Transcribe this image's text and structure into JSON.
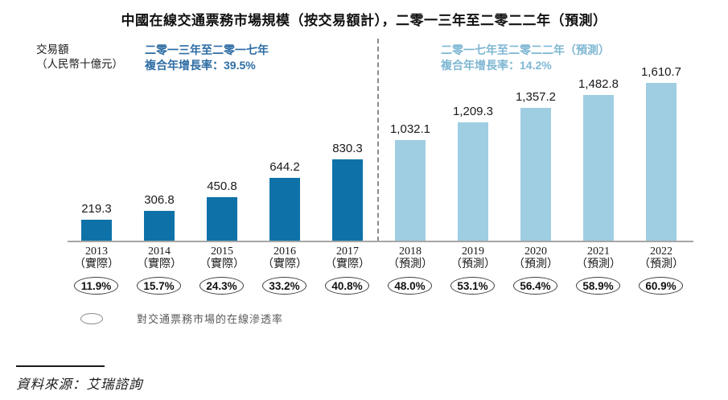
{
  "title": "中國在線交通票務市場規模（按交易額計），二零一三年至二零二二年（預測）",
  "y_axis": {
    "line1": "交易額",
    "line2": "（人民幣十億元）"
  },
  "annotations": {
    "actual": {
      "line1": "二零一三年至二零一七年",
      "line2": "複合年增長率：39.5%",
      "color": "#2E6DA4"
    },
    "forecast": {
      "line1": "二零一七年至二零二二年（預測）",
      "line2": "複合年增長率：14.2%",
      "color": "#7FB7D3"
    }
  },
  "chart_data": {
    "type": "bar",
    "title": "中國在線交通票務市場規模（按交易額計），二零一三年至二零二二年（預測）",
    "ylabel": "交易額（人民幣十億元）",
    "categories": [
      "2013",
      "2014",
      "2015",
      "2016",
      "2017",
      "2018",
      "2019",
      "2020",
      "2021",
      "2022"
    ],
    "category_sublabels": [
      "（實際）",
      "（實際）",
      "（實際）",
      "（實際）",
      "（實際）",
      "（預測）",
      "（預測）",
      "（預測）",
      "（預測）",
      "（預測）"
    ],
    "series": [
      {
        "name": "交易額（人民幣十億元）",
        "values": [
          219.3,
          306.8,
          450.8,
          644.2,
          830.3,
          1032.1,
          1209.3,
          1357.2,
          1482.8,
          1610.7
        ]
      }
    ],
    "value_labels": [
      "219.3",
      "306.8",
      "450.8",
      "644.2",
      "830.3",
      "1,032.1",
      "1,209.3",
      "1,357.2",
      "1,482.8",
      "1,610.7"
    ],
    "segments": [
      "actual",
      "actual",
      "actual",
      "actual",
      "actual",
      "forecast",
      "forecast",
      "forecast",
      "forecast",
      "forecast"
    ],
    "bar_colors": {
      "actual": "#0E72A8",
      "forecast": "#9FCEE2"
    },
    "penetration_rates": [
      "11.9%",
      "15.7%",
      "24.3%",
      "33.2%",
      "40.8%",
      "48.0%",
      "53.1%",
      "56.4%",
      "58.9%",
      "60.9%"
    ],
    "cagr_actual": "39.5%",
    "cagr_forecast": "14.2%",
    "ylim": [
      0,
      1660
    ],
    "grid": false,
    "legend_position": "bottom-left"
  },
  "legend": {
    "label": "對交通票務市場的在線滲透率"
  },
  "source": {
    "text": "資料來源：艾瑞諮詢"
  }
}
